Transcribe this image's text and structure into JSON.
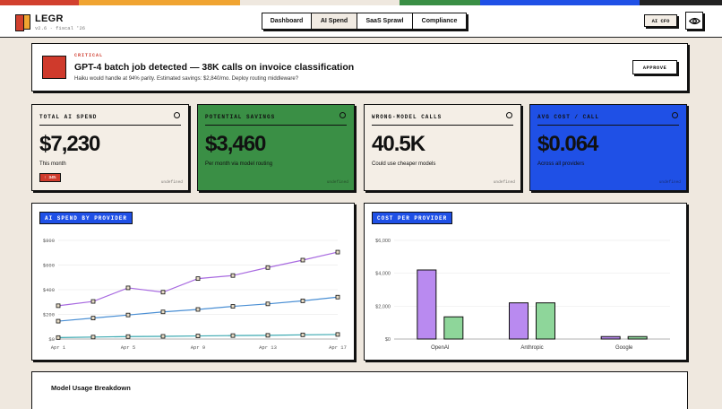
{
  "stripe_colors": [
    "#d2402e",
    "#f0a431",
    "#efe8df",
    "#3a8f45",
    "#1f50e6",
    "#222222"
  ],
  "brand": {
    "name": "LEGR",
    "version": "v2.6 · fiscal '26"
  },
  "nav": {
    "tabs": [
      "Dashboard",
      "AI Spend",
      "SaaS Sprawl",
      "Compliance"
    ],
    "active": "AI Spend"
  },
  "header": {
    "cfo_label": "AI CFO",
    "eye_icon": "eye-icon"
  },
  "alert": {
    "tag": "CRITICAL",
    "title": "GPT-4 batch job detected — 38K calls on invoice classification",
    "description": "Haiku would handle at 94% parity. Estimated savings: $2,840/mo. Deploy routing middleware?",
    "action": "APPROVE"
  },
  "cards": [
    {
      "label": "TOTAL AI SPEND",
      "value": "$7,230",
      "sub": "This month",
      "badge": "↑ 34%",
      "foot": "undefined",
      "bg": "#f4eee6",
      "fg": "#111111"
    },
    {
      "label": "POTENTIAL SAVINGS",
      "value": "$3,460",
      "sub": "Per month via model routing",
      "badge": "",
      "foot": "undefined",
      "bg": "#3a8f45",
      "fg": "#111111"
    },
    {
      "label": "WRONG-MODEL CALLS",
      "value": "40.5K",
      "sub": "Could use cheaper models",
      "badge": "",
      "foot": "undefined",
      "bg": "#f4eee6",
      "fg": "#111111"
    },
    {
      "label": "AVG COST / CALL",
      "value": "$0.064",
      "sub": "Across all providers",
      "badge": "",
      "foot": "undefined",
      "bg": "#1f50e6",
      "fg": "#111111"
    }
  ],
  "panels": {
    "line_title": "AI SPEND BY PROVIDER",
    "bar_title": "COST PER PROVIDER"
  },
  "chart_data": [
    {
      "type": "line",
      "x": [
        "Apr 1",
        "Apr 3",
        "Apr 5",
        "Apr 7",
        "Apr 9",
        "Apr 11",
        "Apr 13",
        "Apr 15",
        "Apr 17"
      ],
      "x_ticks": [
        "Apr 1",
        "Apr 5",
        "Apr 9",
        "Apr 13",
        "Apr 17"
      ],
      "y_ticks": [
        "$0",
        "$200",
        "$400",
        "$600",
        "$800"
      ],
      "ylim": [
        0,
        800
      ],
      "grid": true,
      "series": [
        {
          "color": "#a86ae0",
          "values": [
            270,
            305,
            415,
            380,
            490,
            515,
            580,
            640,
            705
          ]
        },
        {
          "color": "#4a8fd4",
          "values": [
            145,
            170,
            195,
            220,
            240,
            265,
            285,
            310,
            340
          ]
        },
        {
          "color": "#3aa8b0",
          "values": [
            12,
            16,
            20,
            22,
            25,
            28,
            30,
            34,
            37
          ]
        }
      ]
    },
    {
      "type": "bar",
      "categories": [
        "OpenAI",
        "Anthropic",
        "Google"
      ],
      "y_ticks": [
        "$0",
        "$2,000",
        "$4,000",
        "$6,000"
      ],
      "ylim": [
        0,
        6000
      ],
      "grid": true,
      "series": [
        {
          "color": "#b98af0",
          "values": [
            4200,
            2200,
            150
          ]
        },
        {
          "color": "#8ed69a",
          "values": [
            1350,
            2200,
            150
          ]
        }
      ]
    }
  ],
  "usage": {
    "title": "Model Usage Breakdown"
  }
}
